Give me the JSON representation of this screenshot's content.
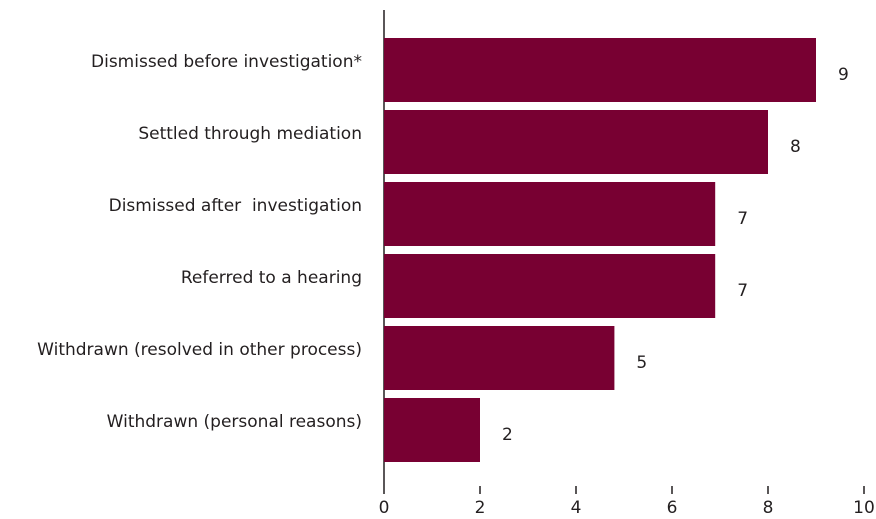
{
  "chart_data": {
    "type": "bar",
    "orientation": "horizontal",
    "categories": [
      "Dismissed before investigation*",
      "Settled through mediation",
      "Dismissed after  investigation",
      "Referred to a hearing",
      "Withdrawn (resolved in other process)",
      "Withdrawn (personal reasons)"
    ],
    "values": [
      9,
      8,
      6.9,
      6.9,
      4.8,
      2
    ],
    "value_labels": [
      "9",
      "8",
      "7",
      "7",
      "5",
      "2"
    ],
    "color": "#780032",
    "xlim": [
      0,
      10
    ],
    "xticks": [
      0,
      2,
      4,
      6,
      8,
      10
    ]
  }
}
